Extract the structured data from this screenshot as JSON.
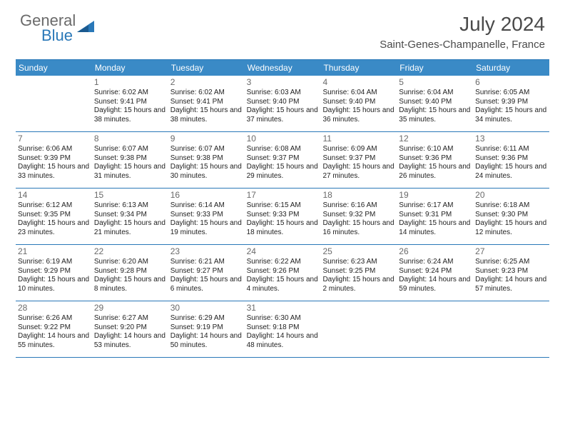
{
  "logo": {
    "general": "General",
    "blue": "Blue"
  },
  "title": "July 2024",
  "location": "Saint-Genes-Champanelle, France",
  "colors": {
    "header_bar": "#3a8ac6",
    "rule": "#2a78b8",
    "logo_gray": "#6a6a6a",
    "logo_blue": "#2a78b8",
    "title_color": "#4a4a4a"
  },
  "weekdays": [
    "Sunday",
    "Monday",
    "Tuesday",
    "Wednesday",
    "Thursday",
    "Friday",
    "Saturday"
  ],
  "weeks": [
    [
      {
        "n": "",
        "sr": "",
        "ss": "",
        "dl": ""
      },
      {
        "n": "1",
        "sr": "Sunrise: 6:02 AM",
        "ss": "Sunset: 9:41 PM",
        "dl": "Daylight: 15 hours and 38 minutes."
      },
      {
        "n": "2",
        "sr": "Sunrise: 6:02 AM",
        "ss": "Sunset: 9:41 PM",
        "dl": "Daylight: 15 hours and 38 minutes."
      },
      {
        "n": "3",
        "sr": "Sunrise: 6:03 AM",
        "ss": "Sunset: 9:40 PM",
        "dl": "Daylight: 15 hours and 37 minutes."
      },
      {
        "n": "4",
        "sr": "Sunrise: 6:04 AM",
        "ss": "Sunset: 9:40 PM",
        "dl": "Daylight: 15 hours and 36 minutes."
      },
      {
        "n": "5",
        "sr": "Sunrise: 6:04 AM",
        "ss": "Sunset: 9:40 PM",
        "dl": "Daylight: 15 hours and 35 minutes."
      },
      {
        "n": "6",
        "sr": "Sunrise: 6:05 AM",
        "ss": "Sunset: 9:39 PM",
        "dl": "Daylight: 15 hours and 34 minutes."
      }
    ],
    [
      {
        "n": "7",
        "sr": "Sunrise: 6:06 AM",
        "ss": "Sunset: 9:39 PM",
        "dl": "Daylight: 15 hours and 33 minutes."
      },
      {
        "n": "8",
        "sr": "Sunrise: 6:07 AM",
        "ss": "Sunset: 9:38 PM",
        "dl": "Daylight: 15 hours and 31 minutes."
      },
      {
        "n": "9",
        "sr": "Sunrise: 6:07 AM",
        "ss": "Sunset: 9:38 PM",
        "dl": "Daylight: 15 hours and 30 minutes."
      },
      {
        "n": "10",
        "sr": "Sunrise: 6:08 AM",
        "ss": "Sunset: 9:37 PM",
        "dl": "Daylight: 15 hours and 29 minutes."
      },
      {
        "n": "11",
        "sr": "Sunrise: 6:09 AM",
        "ss": "Sunset: 9:37 PM",
        "dl": "Daylight: 15 hours and 27 minutes."
      },
      {
        "n": "12",
        "sr": "Sunrise: 6:10 AM",
        "ss": "Sunset: 9:36 PM",
        "dl": "Daylight: 15 hours and 26 minutes."
      },
      {
        "n": "13",
        "sr": "Sunrise: 6:11 AM",
        "ss": "Sunset: 9:36 PM",
        "dl": "Daylight: 15 hours and 24 minutes."
      }
    ],
    [
      {
        "n": "14",
        "sr": "Sunrise: 6:12 AM",
        "ss": "Sunset: 9:35 PM",
        "dl": "Daylight: 15 hours and 23 minutes."
      },
      {
        "n": "15",
        "sr": "Sunrise: 6:13 AM",
        "ss": "Sunset: 9:34 PM",
        "dl": "Daylight: 15 hours and 21 minutes."
      },
      {
        "n": "16",
        "sr": "Sunrise: 6:14 AM",
        "ss": "Sunset: 9:33 PM",
        "dl": "Daylight: 15 hours and 19 minutes."
      },
      {
        "n": "17",
        "sr": "Sunrise: 6:15 AM",
        "ss": "Sunset: 9:33 PM",
        "dl": "Daylight: 15 hours and 18 minutes."
      },
      {
        "n": "18",
        "sr": "Sunrise: 6:16 AM",
        "ss": "Sunset: 9:32 PM",
        "dl": "Daylight: 15 hours and 16 minutes."
      },
      {
        "n": "19",
        "sr": "Sunrise: 6:17 AM",
        "ss": "Sunset: 9:31 PM",
        "dl": "Daylight: 15 hours and 14 minutes."
      },
      {
        "n": "20",
        "sr": "Sunrise: 6:18 AM",
        "ss": "Sunset: 9:30 PM",
        "dl": "Daylight: 15 hours and 12 minutes."
      }
    ],
    [
      {
        "n": "21",
        "sr": "Sunrise: 6:19 AM",
        "ss": "Sunset: 9:29 PM",
        "dl": "Daylight: 15 hours and 10 minutes."
      },
      {
        "n": "22",
        "sr": "Sunrise: 6:20 AM",
        "ss": "Sunset: 9:28 PM",
        "dl": "Daylight: 15 hours and 8 minutes."
      },
      {
        "n": "23",
        "sr": "Sunrise: 6:21 AM",
        "ss": "Sunset: 9:27 PM",
        "dl": "Daylight: 15 hours and 6 minutes."
      },
      {
        "n": "24",
        "sr": "Sunrise: 6:22 AM",
        "ss": "Sunset: 9:26 PM",
        "dl": "Daylight: 15 hours and 4 minutes."
      },
      {
        "n": "25",
        "sr": "Sunrise: 6:23 AM",
        "ss": "Sunset: 9:25 PM",
        "dl": "Daylight: 15 hours and 2 minutes."
      },
      {
        "n": "26",
        "sr": "Sunrise: 6:24 AM",
        "ss": "Sunset: 9:24 PM",
        "dl": "Daylight: 14 hours and 59 minutes."
      },
      {
        "n": "27",
        "sr": "Sunrise: 6:25 AM",
        "ss": "Sunset: 9:23 PM",
        "dl": "Daylight: 14 hours and 57 minutes."
      }
    ],
    [
      {
        "n": "28",
        "sr": "Sunrise: 6:26 AM",
        "ss": "Sunset: 9:22 PM",
        "dl": "Daylight: 14 hours and 55 minutes."
      },
      {
        "n": "29",
        "sr": "Sunrise: 6:27 AM",
        "ss": "Sunset: 9:20 PM",
        "dl": "Daylight: 14 hours and 53 minutes."
      },
      {
        "n": "30",
        "sr": "Sunrise: 6:29 AM",
        "ss": "Sunset: 9:19 PM",
        "dl": "Daylight: 14 hours and 50 minutes."
      },
      {
        "n": "31",
        "sr": "Sunrise: 6:30 AM",
        "ss": "Sunset: 9:18 PM",
        "dl": "Daylight: 14 hours and 48 minutes."
      },
      {
        "n": "",
        "sr": "",
        "ss": "",
        "dl": ""
      },
      {
        "n": "",
        "sr": "",
        "ss": "",
        "dl": ""
      },
      {
        "n": "",
        "sr": "",
        "ss": "",
        "dl": ""
      }
    ]
  ]
}
